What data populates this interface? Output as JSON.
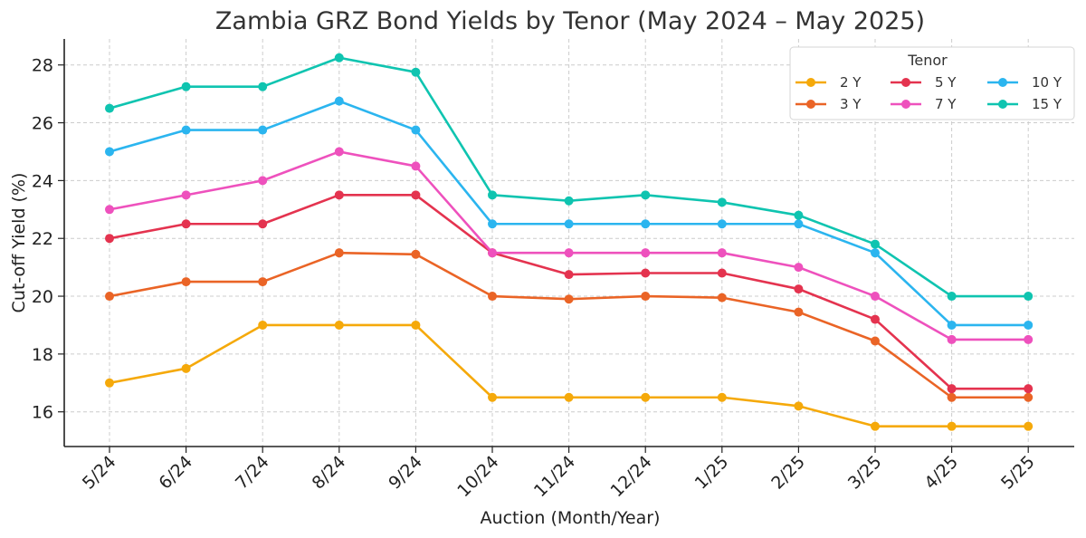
{
  "chart_data": {
    "type": "line",
    "title": "Zambia GRZ Bond Yields by Tenor (May 2024 – May 2025)",
    "xlabel": "Auction (Month/Year)",
    "ylabel": "Cut-off Yield (%)",
    "categories": [
      "5/24",
      "6/24",
      "7/24",
      "8/24",
      "9/24",
      "10/24",
      "11/24",
      "12/24",
      "1/25",
      "2/25",
      "3/25",
      "4/25",
      "5/25"
    ],
    "yticks": [
      16,
      18,
      20,
      22,
      24,
      26,
      28
    ],
    "ylim": [
      14.8,
      28.9
    ],
    "grid": true,
    "legend": {
      "title": "Tenor",
      "placement": "top-right",
      "columns": 3
    },
    "series": [
      {
        "name": "2 Y",
        "color": "#f5a90a",
        "values": [
          17.0,
          17.5,
          19.0,
          19.0,
          19.0,
          16.5,
          16.5,
          16.5,
          16.5,
          16.2,
          15.5,
          15.5,
          15.5
        ]
      },
      {
        "name": "3 Y",
        "color": "#ea6426",
        "values": [
          20.0,
          20.5,
          20.5,
          21.5,
          21.45,
          20.0,
          19.9,
          20.0,
          19.95,
          19.45,
          18.45,
          16.5,
          16.5
        ]
      },
      {
        "name": "5 Y",
        "color": "#e4334f",
        "values": [
          22.0,
          22.5,
          22.5,
          23.5,
          23.5,
          21.5,
          20.75,
          20.8,
          20.8,
          20.25,
          19.2,
          16.8,
          16.8
        ]
      },
      {
        "name": "7 Y",
        "color": "#ee51bd",
        "values": [
          23.0,
          23.5,
          24.0,
          25.0,
          24.5,
          21.5,
          21.5,
          21.5,
          21.5,
          21.0,
          20.0,
          18.5,
          18.5
        ]
      },
      {
        "name": "10 Y",
        "color": "#2bb5ef",
        "values": [
          25.0,
          25.75,
          25.75,
          26.75,
          25.75,
          22.5,
          22.5,
          22.5,
          22.5,
          22.5,
          21.5,
          19.0,
          19.0
        ]
      },
      {
        "name": "15 Y",
        "color": "#0fc4b0",
        "values": [
          26.5,
          27.25,
          27.25,
          28.25,
          27.75,
          23.5,
          23.3,
          23.5,
          23.25,
          22.8,
          21.8,
          20.0,
          20.0
        ]
      }
    ]
  }
}
